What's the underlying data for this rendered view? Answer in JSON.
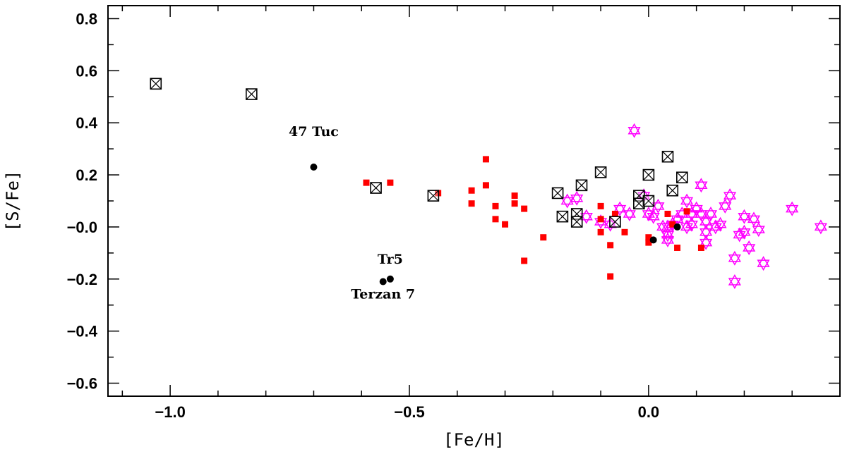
{
  "chart_data": {
    "type": "scatter",
    "title": "",
    "xlabel": "[Fe/H]",
    "ylabel": "[S/Fe]",
    "xlim": [
      -1.13,
      0.4
    ],
    "ylim": [
      -0.65,
      0.85
    ],
    "xticks": [
      -1.0,
      -0.5,
      0.0
    ],
    "xtick_labels": [
      "−1.0",
      "−0.5",
      "0.0"
    ],
    "yticks": [
      -0.6,
      -0.4,
      -0.2,
      0.0,
      0.2,
      0.4,
      0.6,
      0.8
    ],
    "ytick_labels": [
      "−0.6",
      "−0.4",
      "−0.2",
      "−0.0",
      "0.2",
      "0.4",
      "0.6",
      "0.8"
    ],
    "grid": false,
    "legend": "none",
    "colors": {
      "red": "#ff0000",
      "magenta": "#ff00ff",
      "black": "#000000"
    },
    "series": [
      {
        "marker": "filled-square",
        "color": "#ff0000",
        "points": [
          [
            -0.59,
            0.17
          ],
          [
            -0.54,
            0.17
          ],
          [
            -0.44,
            0.13
          ],
          [
            -0.37,
            0.14
          ],
          [
            -0.37,
            0.09
          ],
          [
            -0.34,
            0.26
          ],
          [
            -0.34,
            0.16
          ],
          [
            -0.32,
            0.08
          ],
          [
            -0.32,
            0.03
          ],
          [
            -0.3,
            0.01
          ],
          [
            -0.28,
            0.12
          ],
          [
            -0.28,
            0.09
          ],
          [
            -0.26,
            0.07
          ],
          [
            -0.26,
            -0.13
          ],
          [
            -0.22,
            -0.04
          ],
          [
            -0.1,
            0.08
          ],
          [
            -0.1,
            0.03
          ],
          [
            -0.1,
            -0.02
          ],
          [
            -0.08,
            -0.07
          ],
          [
            -0.08,
            -0.19
          ],
          [
            -0.07,
            0.05
          ],
          [
            -0.05,
            -0.02
          ],
          [
            0.0,
            -0.04
          ],
          [
            0.0,
            -0.06
          ],
          [
            0.04,
            0.05
          ],
          [
            0.05,
            0.01
          ],
          [
            0.06,
            -0.08
          ],
          [
            0.08,
            0.06
          ],
          [
            0.11,
            -0.08
          ]
        ]
      },
      {
        "marker": "boxed-x",
        "color": "#000000",
        "points": [
          [
            -1.03,
            0.55,
            0.0
          ],
          [
            -0.83,
            0.51,
            0.14
          ],
          [
            -0.57,
            0.15,
            0.07
          ],
          [
            -0.45,
            0.12,
            0.0
          ],
          [
            -0.19,
            0.13,
            0.0
          ],
          [
            -0.18,
            0.04,
            0.05
          ],
          [
            -0.15,
            0.05,
            0.05
          ],
          [
            -0.15,
            0.02,
            0.06
          ],
          [
            -0.14,
            0.16,
            0.06
          ],
          [
            -0.1,
            0.21,
            0.06
          ],
          [
            -0.07,
            0.02,
            0.04
          ],
          [
            -0.02,
            0.12,
            0.05
          ],
          [
            -0.02,
            0.09,
            0.05
          ],
          [
            0.0,
            0.2,
            0.1
          ],
          [
            0.0,
            0.1,
            0.07
          ],
          [
            0.04,
            0.27,
            0.07
          ],
          [
            0.05,
            0.14,
            0.08
          ],
          [
            0.07,
            0.19,
            0.07
          ]
        ]
      },
      {
        "marker": "filled-circle",
        "color": "#000000",
        "points": [
          [
            -0.7,
            0.23,
            0.11
          ],
          [
            -0.555,
            -0.21,
            0.0
          ],
          [
            -0.54,
            -0.2,
            0.03
          ],
          [
            0.01,
            -0.05,
            0.0
          ],
          [
            0.06,
            0.0,
            0.0
          ]
        ]
      },
      {
        "marker": "star-of-david",
        "color": "#ff00ff",
        "points": [
          [
            -0.17,
            0.1,
            0.13
          ],
          [
            -0.15,
            0.11,
            0.1
          ],
          [
            -0.13,
            0.04,
            0.09
          ],
          [
            -0.1,
            0.02,
            0.2
          ],
          [
            -0.08,
            0.01,
            0.09
          ],
          [
            -0.06,
            0.07,
            0.1
          ],
          [
            -0.04,
            0.05,
            0.1
          ],
          [
            -0.03,
            0.37,
            0.1
          ],
          [
            -0.01,
            0.12,
            0.1
          ],
          [
            0.0,
            0.05,
            0.1
          ],
          [
            0.01,
            0.04,
            0.11
          ],
          [
            0.02,
            0.08,
            0.08
          ],
          [
            0.03,
            0.0,
            0.1
          ],
          [
            0.04,
            0.0,
            0.1
          ],
          [
            0.04,
            -0.03,
            0.1
          ],
          [
            0.04,
            -0.05,
            0.17
          ],
          [
            0.05,
            0.01,
            0.15
          ],
          [
            0.06,
            0.03,
            0.15
          ],
          [
            0.07,
            0.05,
            0.15
          ],
          [
            0.08,
            0.0,
            0.12
          ],
          [
            0.08,
            0.1,
            0.1
          ],
          [
            0.09,
            0.05,
            0.1
          ],
          [
            0.09,
            0.01,
            0.1
          ],
          [
            0.1,
            0.07,
            0.1
          ],
          [
            0.11,
            0.05,
            0.15
          ],
          [
            0.11,
            0.16,
            0.18
          ],
          [
            0.12,
            -0.02,
            0.2
          ],
          [
            0.12,
            0.02,
            0.15
          ],
          [
            0.12,
            -0.06,
            0.15
          ],
          [
            0.13,
            0.05,
            0.15
          ],
          [
            0.14,
            0.0,
            0.1
          ],
          [
            0.15,
            0.01,
            0.15
          ],
          [
            0.16,
            0.08,
            0.15
          ],
          [
            0.17,
            0.12,
            0.15
          ],
          [
            0.18,
            -0.12,
            0.2
          ],
          [
            0.18,
            -0.21,
            0.31
          ],
          [
            0.19,
            -0.03,
            0.2
          ],
          [
            0.2,
            -0.02,
            0.2
          ],
          [
            0.2,
            0.04,
            0.12
          ],
          [
            0.21,
            -0.08,
            0.2
          ],
          [
            0.22,
            0.03,
            0.15
          ],
          [
            0.23,
            -0.01,
            0.1
          ],
          [
            0.24,
            -0.14,
            0.23
          ],
          [
            0.3,
            0.07,
            0.18
          ],
          [
            0.36,
            0.0,
            0.17
          ]
        ]
      }
    ],
    "annotations": [
      {
        "text": "47 Tuc",
        "x": -0.7,
        "y": 0.23
      },
      {
        "text": "Tr5",
        "x": -0.54,
        "y": -0.2
      },
      {
        "text": "Terzan 7",
        "x": -0.555,
        "y": -0.21
      }
    ]
  }
}
